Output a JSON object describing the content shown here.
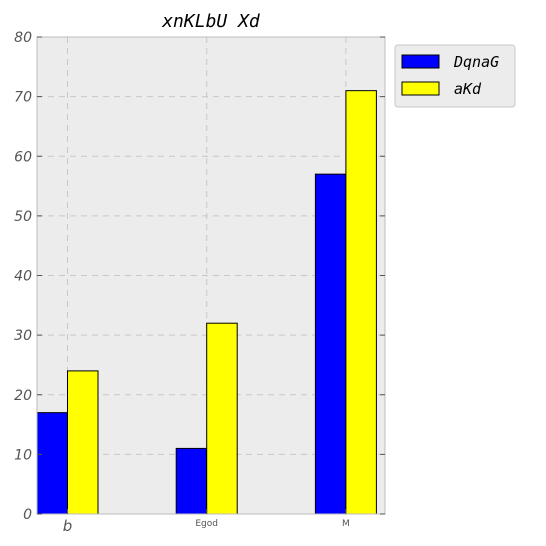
{
  "chart_data": {
    "type": "bar",
    "title": "xnKLbU Xd",
    "xlabel": "",
    "ylabel": "",
    "categories": [
      "b",
      "Egod",
      "M"
    ],
    "series": [
      {
        "name": "DqnaG",
        "color": "#0000ff",
        "values": [
          17,
          11,
          57
        ]
      },
      {
        "name": "aKd",
        "color": "#ffff00",
        "values": [
          24,
          32,
          71
        ]
      }
    ],
    "ylim": [
      0,
      80
    ],
    "yticks": [
      0,
      10,
      20,
      30,
      40,
      50,
      60,
      70,
      80
    ],
    "grid": true,
    "legend_position": "outside-top-right",
    "background": "#ececec"
  }
}
